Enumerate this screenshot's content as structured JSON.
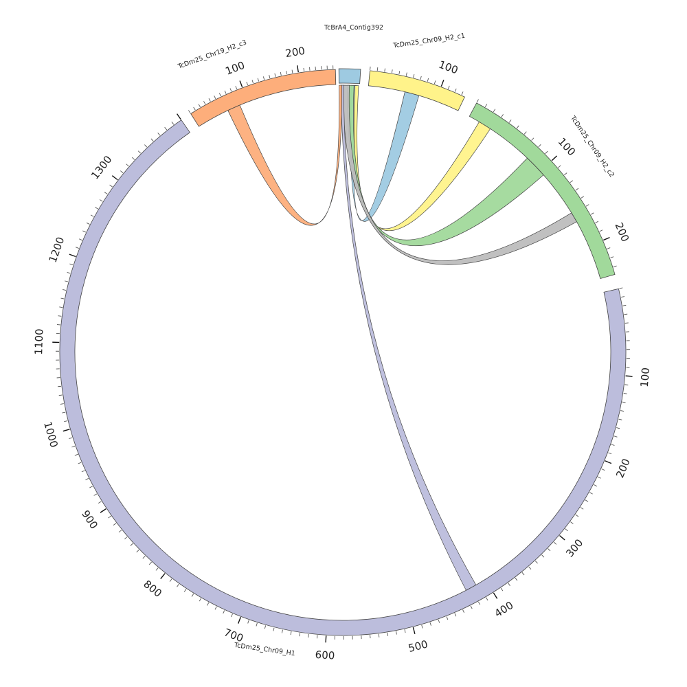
{
  "diagram": {
    "type": "chord",
    "segments": [
      {
        "id": "contig392",
        "label": "TcBrA4_Contig392",
        "length": 10,
        "color": "#9ecae1",
        "ticks": []
      },
      {
        "id": "c1",
        "label": "TcDm25_Chr09_H2_c1",
        "length": 135,
        "color": "#fff38a",
        "ticks": [
          100
        ]
      },
      {
        "id": "c2",
        "label": "TcDm25_Chr09_H2_c2",
        "length": 238,
        "color": "#a1d99b",
        "ticks": [
          100,
          200
        ]
      },
      {
        "id": "h1",
        "label": "TcDm25_Chr09_H1",
        "length": 1400,
        "color": "#bcbddc",
        "ticks": [
          100,
          200,
          300,
          400,
          500,
          600,
          700,
          800,
          900,
          1000,
          1100,
          1200,
          1300
        ]
      },
      {
        "id": "c3",
        "label": "TcDm25_Chr19_H2_c3",
        "length": 264,
        "color": "#fdae7b",
        "ticks": [
          100,
          200
        ]
      }
    ],
    "links": [
      {
        "to": "c1",
        "color": "#9ecae1"
      },
      {
        "to": "c2",
        "color": "#fff38a"
      },
      {
        "to": "c2",
        "color": "#a1d99b"
      },
      {
        "to": "c2",
        "color": "#bdbdbd"
      },
      {
        "to": "h1",
        "color": "#bcbddc"
      },
      {
        "to": "c3",
        "color": "#fdae7b"
      }
    ]
  }
}
